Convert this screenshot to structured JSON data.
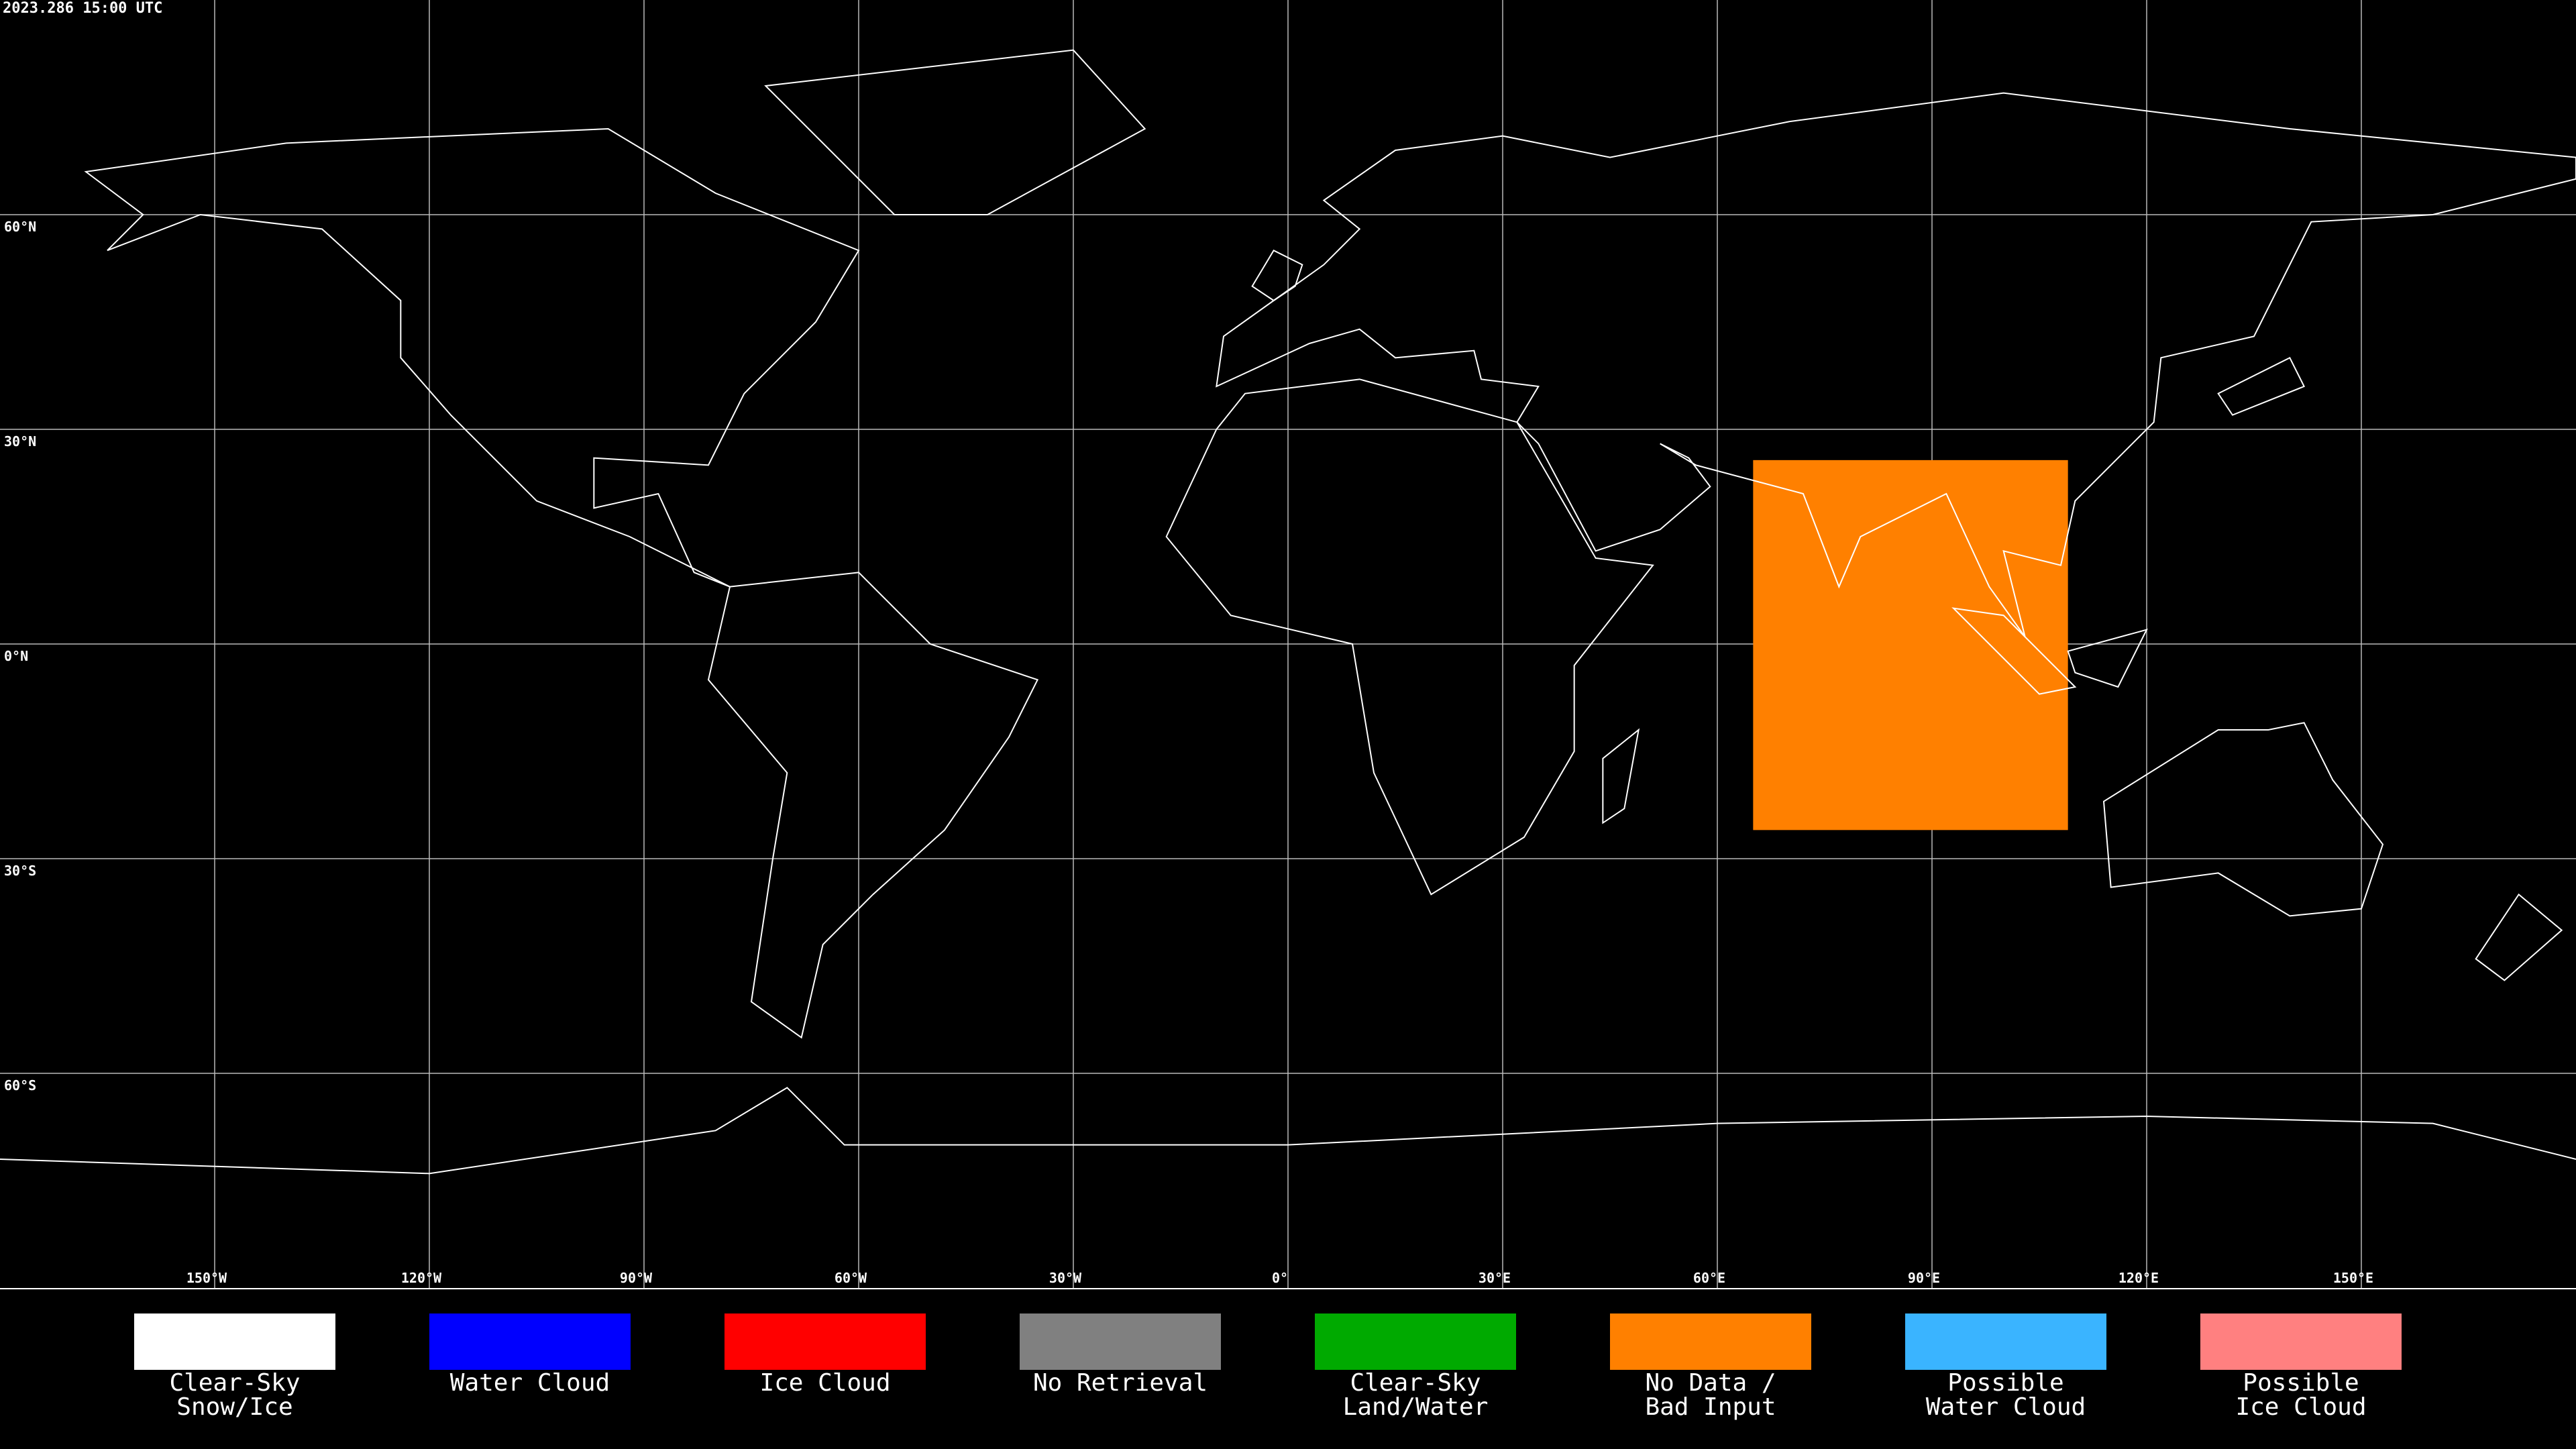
{
  "header": {
    "timestamp": "2023.286 15:00 UTC"
  },
  "map": {
    "longitude_labels": [
      "150°W",
      "120°W",
      "90°W",
      "60°W",
      "30°W",
      "0°",
      "30°E",
      "60°E",
      "90°E",
      "120°E",
      "150°E"
    ],
    "latitude_labels": [
      "60°N",
      "30°N",
      "0°N",
      "30°S",
      "60°S"
    ]
  },
  "legend": {
    "items": [
      {
        "label": [
          "Clear-Sky",
          "Snow/Ice"
        ],
        "color": "#ffffff"
      },
      {
        "label": [
          "Water Cloud"
        ],
        "color": "#0000ff"
      },
      {
        "label": [
          "Ice Cloud"
        ],
        "color": "#ff0000"
      },
      {
        "label": [
          "No Retrieval"
        ],
        "color": "#808080"
      },
      {
        "label": [
          "Clear-Sky",
          "Land/Water"
        ],
        "color": "#00aa00"
      },
      {
        "label": [
          "No Data /",
          "Bad Input"
        ],
        "color": "#ff8000"
      },
      {
        "label": [
          "Possible",
          "Water Cloud"
        ],
        "color": "#3ab4ff"
      },
      {
        "label": [
          "Possible",
          "Ice Cloud"
        ],
        "color": "#ff8080"
      }
    ]
  }
}
